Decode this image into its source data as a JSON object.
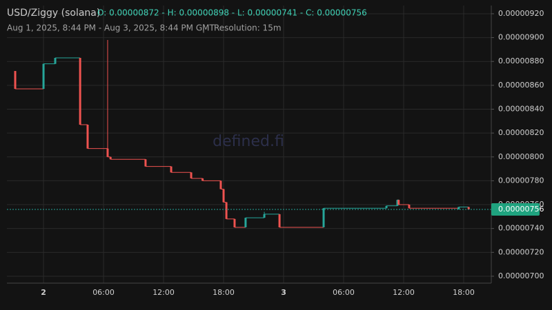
{
  "header": {
    "symbol": "USD/Ziggy (solana)",
    "ohlc": "O: 0.00000872 - H: 0.00000898 - L: 0.00000741 - C: 0.00000756",
    "range": "Aug 1, 2025, 8:44 PM - Aug 3, 2025, 8:44 PM GMT",
    "resolution": "Resolution: 15m",
    "watermark": "defined.fi"
  },
  "chart_data": {
    "type": "candlestick",
    "up_color": "#26a69a",
    "down_color": "#ef5350",
    "x": [
      -2.83,
      0,
      1.17,
      3.66,
      4.41,
      6.41,
      6.7,
      10.2,
      12.76,
      14.76,
      15.9,
      17.72,
      18.0,
      18.28,
      19.1,
      20.2,
      22.07,
      23.59,
      28.0,
      34.28,
      35.38,
      35.5,
      36.55,
      41.5,
      42.5
    ],
    "open": [
      8.72e-06,
      8.57e-06,
      8.78e-06,
      8.83e-06,
      8.27e-06,
      8.07e-06,
      8e-06,
      7.98e-06,
      7.92e-06,
      7.87e-06,
      7.82e-06,
      7.8e-06,
      7.73e-06,
      7.62e-06,
      7.48e-06,
      7.41e-06,
      7.49e-06,
      7.52e-06,
      7.41e-06,
      7.57e-06,
      7.59e-06,
      7.64e-06,
      7.6e-06,
      7.56e-06,
      7.58e-06
    ],
    "high": [
      8.72e-06,
      8.78e-06,
      8.83e-06,
      8.83e-06,
      8.27e-06,
      8.98e-06,
      8e-06,
      7.98e-06,
      7.92e-06,
      7.87e-06,
      7.82e-06,
      7.8e-06,
      7.73e-06,
      7.62e-06,
      7.48e-06,
      7.49e-06,
      7.54e-06,
      7.52e-06,
      7.57e-06,
      7.59e-06,
      7.64e-06,
      7.64e-06,
      7.6e-06,
      7.58e-06,
      7.58e-06
    ],
    "low": [
      8.57e-06,
      8.57e-06,
      8.78e-06,
      8.27e-06,
      8.07e-06,
      8e-06,
      7.98e-06,
      7.92e-06,
      7.87e-06,
      7.82e-06,
      7.8e-06,
      7.73e-06,
      7.62e-06,
      7.48e-06,
      7.41e-06,
      7.41e-06,
      7.49e-06,
      7.41e-06,
      7.41e-06,
      7.57e-06,
      7.59e-06,
      7.6e-06,
      7.57e-06,
      7.56e-06,
      7.56e-06
    ],
    "close": [
      8.57e-06,
      8.78e-06,
      8.83e-06,
      8.27e-06,
      8.07e-06,
      8e-06,
      7.98e-06,
      7.92e-06,
      7.87e-06,
      7.82e-06,
      7.8e-06,
      7.73e-06,
      7.62e-06,
      7.48e-06,
      7.41e-06,
      7.49e-06,
      7.52e-06,
      7.41e-06,
      7.57e-06,
      7.59e-06,
      7.64e-06,
      7.6e-06,
      7.57e-06,
      7.58e-06,
      7.56e-06
    ],
    "xlim": [
      -3.66,
      44.76
    ],
    "xticks": [
      {
        "value": 0,
        "label": "2"
      },
      {
        "value": 6,
        "label": "06:00"
      },
      {
        "value": 12,
        "label": "12:00"
      },
      {
        "value": 18,
        "label": "18:00"
      },
      {
        "value": 24,
        "label": "3"
      },
      {
        "value": 30,
        "label": "06:00"
      },
      {
        "value": 36,
        "label": "12:00"
      },
      {
        "value": 42,
        "label": "18:00"
      }
    ],
    "ylim": [
      6.942e-06,
      9.269e-06
    ],
    "yticks": [
      {
        "value": 7e-06,
        "label": "0.00000700"
      },
      {
        "value": 7.2e-06,
        "label": "0.00000720"
      },
      {
        "value": 7.4e-06,
        "label": "0.00000740"
      },
      {
        "value": 7.6e-06,
        "label": "0.00000760"
      },
      {
        "value": 7.8e-06,
        "label": "0.00000780"
      },
      {
        "value": 8e-06,
        "label": "0.00000800"
      },
      {
        "value": 8.2e-06,
        "label": "0.00000820"
      },
      {
        "value": 8.4e-06,
        "label": "0.00000840"
      },
      {
        "value": 8.6e-06,
        "label": "0.00000860"
      },
      {
        "value": 8.8e-06,
        "label": "0.00000880"
      },
      {
        "value": 9e-06,
        "label": "0.00000900"
      },
      {
        "value": 9.2e-06,
        "label": "0.00000920"
      }
    ],
    "last_price": {
      "value": 7.56e-06,
      "label": "0.00000756"
    },
    "grid": true
  }
}
